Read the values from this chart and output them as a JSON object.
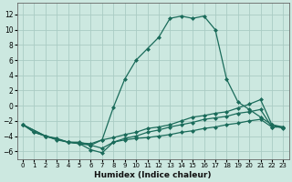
{
  "xlabel": "Humidex (Indice chaleur)",
  "background_color": "#cce8e0",
  "grid_color": "#aaccc4",
  "line_color": "#1a6b5a",
  "x_ticks": [
    0,
    1,
    2,
    3,
    4,
    5,
    6,
    7,
    8,
    9,
    10,
    11,
    12,
    13,
    14,
    15,
    16,
    17,
    18,
    19,
    20,
    21,
    22,
    23
  ],
  "y_ticks": [
    -6,
    -4,
    -2,
    0,
    2,
    4,
    6,
    8,
    10,
    12
  ],
  "xlim": [
    -0.5,
    23.5
  ],
  "ylim": [
    -7.0,
    13.5
  ],
  "curve1_x": [
    0,
    1,
    2,
    3,
    4,
    5,
    6,
    7,
    8,
    9,
    10,
    11,
    12,
    13,
    14,
    15,
    16,
    17,
    18,
    19,
    20,
    21,
    22,
    23
  ],
  "curve1_y": [
    -2.5,
    -3.5,
    -4.0,
    -4.3,
    -4.8,
    -4.8,
    -5.2,
    -4.5,
    -0.2,
    3.5,
    6.0,
    7.5,
    9.0,
    11.5,
    11.8,
    11.5,
    11.8,
    10.0,
    3.5,
    0.5,
    -0.5,
    -1.5,
    -2.5,
    -2.8
  ],
  "curve2_x": [
    0,
    2,
    4,
    6,
    7,
    8,
    9,
    10,
    11,
    12,
    13,
    14,
    15,
    16,
    17,
    18,
    19,
    20,
    21,
    22,
    23
  ],
  "curve2_y": [
    -2.5,
    -4.0,
    -4.8,
    -5.0,
    -4.5,
    -4.2,
    -3.8,
    -3.5,
    -3.0,
    -2.8,
    -2.5,
    -2.0,
    -1.5,
    -1.3,
    -1.0,
    -0.8,
    -0.3,
    0.2,
    0.8,
    -2.5,
    -3.0
  ],
  "curve3_x": [
    0,
    2,
    4,
    6,
    7,
    8,
    9,
    10,
    11,
    12,
    13,
    14,
    15,
    16,
    17,
    18,
    19,
    20,
    21,
    22,
    23
  ],
  "curve3_y": [
    -2.5,
    -4.0,
    -4.8,
    -5.2,
    -5.6,
    -4.8,
    -4.3,
    -4.0,
    -3.5,
    -3.2,
    -2.8,
    -2.5,
    -2.2,
    -1.8,
    -1.6,
    -1.4,
    -1.0,
    -0.8,
    -0.5,
    -2.8,
    -2.8
  ],
  "curve4_x": [
    0,
    1,
    2,
    3,
    4,
    5,
    6,
    7,
    8,
    9,
    10,
    11,
    12,
    13,
    14,
    15,
    16,
    17,
    18,
    19,
    20,
    21,
    22,
    23
  ],
  "curve4_y": [
    -2.5,
    -3.5,
    -4.0,
    -4.5,
    -4.8,
    -5.0,
    -5.8,
    -6.2,
    -4.8,
    -4.5,
    -4.3,
    -4.2,
    -4.0,
    -3.8,
    -3.5,
    -3.3,
    -3.0,
    -2.8,
    -2.5,
    -2.3,
    -2.0,
    -1.8,
    -2.8,
    -2.8
  ]
}
